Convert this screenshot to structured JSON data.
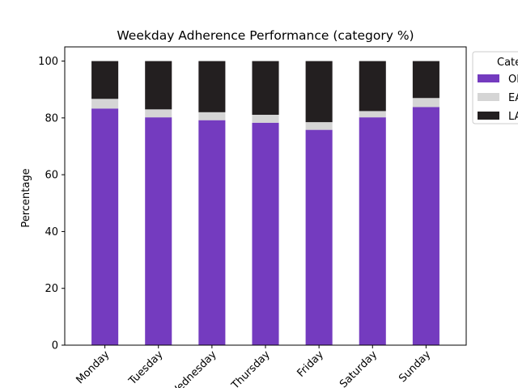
{
  "chart_data": {
    "type": "bar",
    "stacked": true,
    "title": "Weekday Adherence Performance (category %)",
    "xlabel": "",
    "ylabel": "Percentage",
    "ylim": [
      0,
      105
    ],
    "yticks": [
      0,
      20,
      40,
      60,
      80,
      100
    ],
    "categories": [
      "Monday",
      "Tuesday",
      "Wednesday",
      "Thursday",
      "Friday",
      "Saturday",
      "Sunday"
    ],
    "series": [
      {
        "name": "ON TIME",
        "color": "#743bbf",
        "values": [
          83.3,
          80.2,
          79.2,
          78.3,
          75.8,
          80.2,
          83.8
        ]
      },
      {
        "name": "EARLY",
        "color": "#d5d5d5",
        "values": [
          3.4,
          2.8,
          2.8,
          2.8,
          2.7,
          2.2,
          3.2
        ]
      },
      {
        "name": "LATE",
        "color": "#231f20",
        "values": [
          13.3,
          17.0,
          18.0,
          18.9,
          21.5,
          17.6,
          13.0
        ]
      }
    ],
    "legend": {
      "title": "Category",
      "placement": "outside-right-top"
    },
    "grid": false
  }
}
